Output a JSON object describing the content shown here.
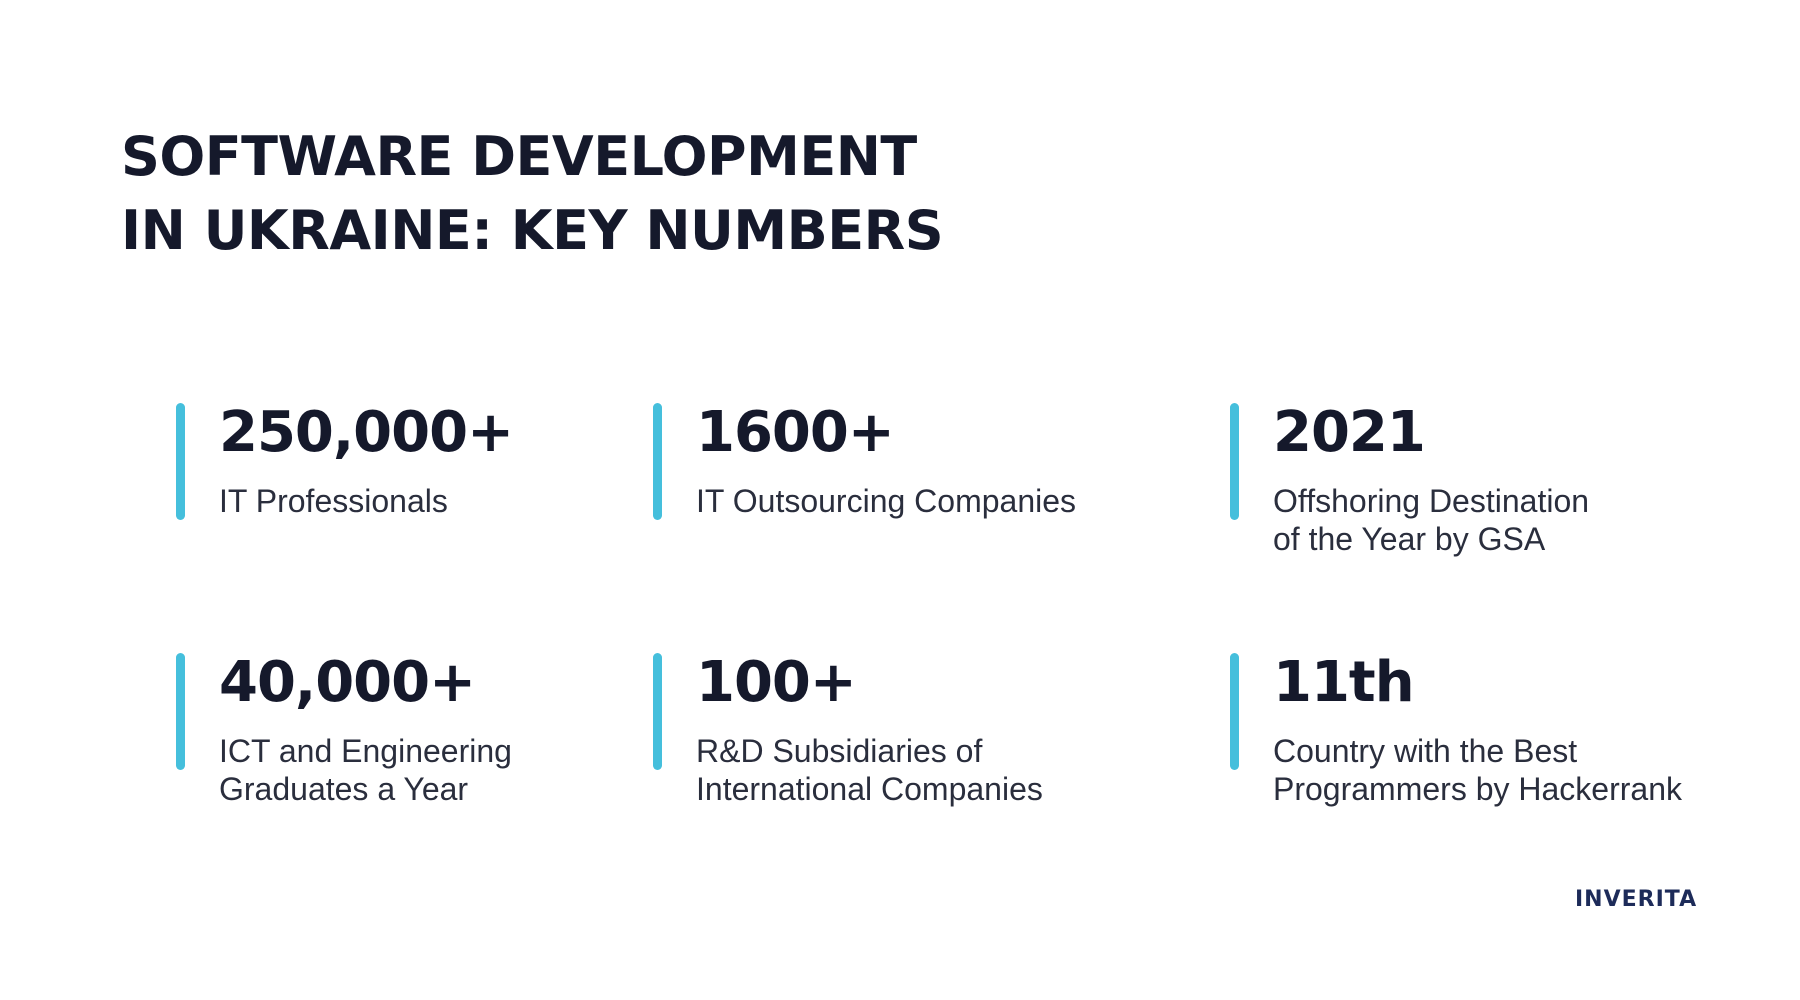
{
  "title": {
    "line1": "SOFTWARE DEVELOPMENT",
    "line2": "IN UKRAINE: KEY NUMBERS"
  },
  "stats": [
    {
      "value": "250,000+",
      "label": "IT Professionals"
    },
    {
      "value": "1600+",
      "label": "IT Outsourcing Companies"
    },
    {
      "value": "2021",
      "label": "Offshoring Destination of the Year by GSA"
    },
    {
      "value": "40,000+",
      "label": "ICT and Engineering Graduates a Year"
    },
    {
      "value": "100+",
      "label": "R&D Subsidiaries of International Companies"
    },
    {
      "value": "11th",
      "label": "Country with the Best Programmers by Hackerrank"
    }
  ],
  "logo": {
    "text": "INVERITA"
  },
  "colors": {
    "accent": "#45bfdc",
    "text": "#15192b",
    "logo": "#1d2b59",
    "background": "#ffffff"
  }
}
